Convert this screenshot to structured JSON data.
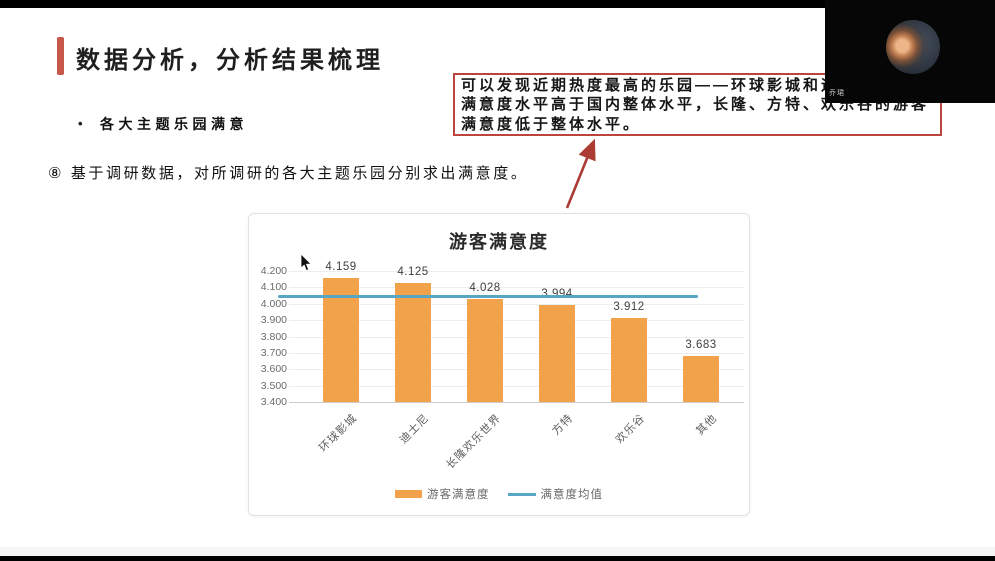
{
  "header": {
    "title": "数据分析，分析结果梳理"
  },
  "bullet": {
    "marker": "•",
    "label": "各大主题乐园满意"
  },
  "body": {
    "text": "⑧ 基于调研数据，对所调研的各大主题乐园分别求出满意度。"
  },
  "callout": {
    "line1": "可以发现近期热度最高的乐园——环球影城和迪士尼的游客",
    "line2": "满意度水平高于国内整体水平，长隆、方特、欢乐谷的游客",
    "line3": "满意度低于整体水平。",
    "border_color": "#B94440",
    "arrow_color": "#AC3B33"
  },
  "webcam": {
    "participant_name": "乔珺"
  },
  "accent_color": "#C8574B",
  "chart_data": {
    "type": "bar",
    "title": "游客满意度",
    "categories": [
      "环球影城",
      "迪士尼",
      "长隆欢乐世界",
      "方特",
      "欢乐谷",
      "其他"
    ],
    "series": [
      {
        "name": "游客满意度",
        "type": "bar",
        "color": "#F2A24B",
        "values": [
          4.159,
          4.125,
          4.028,
          3.994,
          3.912,
          3.683
        ]
      },
      {
        "name": "满意度均值",
        "type": "line",
        "color": "#58A6C6",
        "value": 4.045
      }
    ],
    "data_labels": [
      "4.159",
      "4.125",
      "4.028",
      "3.994",
      "3.912",
      "3.683"
    ],
    "ylim": [
      3.4,
      4.2
    ],
    "ytick_step": 0.1,
    "ytick_labels": [
      "4.200",
      "4.100",
      "4.000",
      "3.900",
      "3.800",
      "3.700",
      "3.600",
      "3.500",
      "3.400"
    ],
    "grid": true,
    "legend_position": "bottom"
  }
}
